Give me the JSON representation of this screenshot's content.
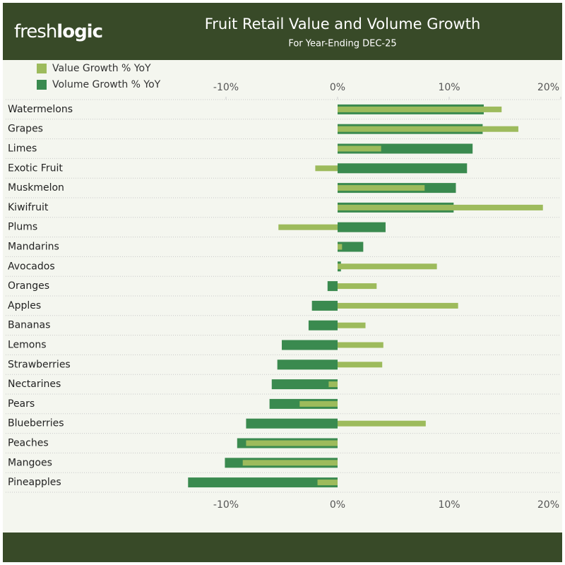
{
  "logo_light": "fresh",
  "logo_bold": "logic",
  "chart_data": {
    "type": "hbar",
    "title": "Fruit Retail Value and Volume Growth",
    "subtitle": "For Year-Ending DEC-25",
    "categories": [
      "Watermelons",
      "Grapes",
      "Limes",
      "Exotic Fruit",
      "Muskmelon",
      "Kiwifruit",
      "Plums",
      "Mandarins",
      "Avocados",
      "Oranges",
      "Apples",
      "Bananas",
      "Lemons",
      "Strawberries",
      "Nectarines",
      "Pears",
      "Blueberries",
      "Peaches",
      "Mangoes",
      "Pineapples"
    ],
    "series": [
      {
        "name": "Value Growth % YoY",
        "color": "#9dbb5c",
        "values": [
          14.7,
          16.2,
          3.9,
          -2.0,
          7.8,
          18.4,
          -5.3,
          0.4,
          8.9,
          3.5,
          10.8,
          2.5,
          4.1,
          4.0,
          -0.8,
          -3.4,
          7.9,
          -8.2,
          -8.5,
          -1.8
        ]
      },
      {
        "name": "Volume Growth % YoY",
        "color": "#3a8a4f",
        "values": [
          13.1,
          13.0,
          12.1,
          11.6,
          10.6,
          10.4,
          4.3,
          2.3,
          0.3,
          -0.9,
          -2.3,
          -2.6,
          -5.0,
          -5.4,
          -5.9,
          -6.1,
          -8.2,
          -9.0,
          -10.1,
          -13.4
        ]
      }
    ],
    "xlim": [
      -20,
      20
    ],
    "xticks": [
      {
        "value": -10,
        "label": "-10%"
      },
      {
        "value": 0,
        "label": "0%"
      },
      {
        "value": 10,
        "label": "10%"
      },
      {
        "value": 20,
        "label": "20%"
      }
    ]
  }
}
